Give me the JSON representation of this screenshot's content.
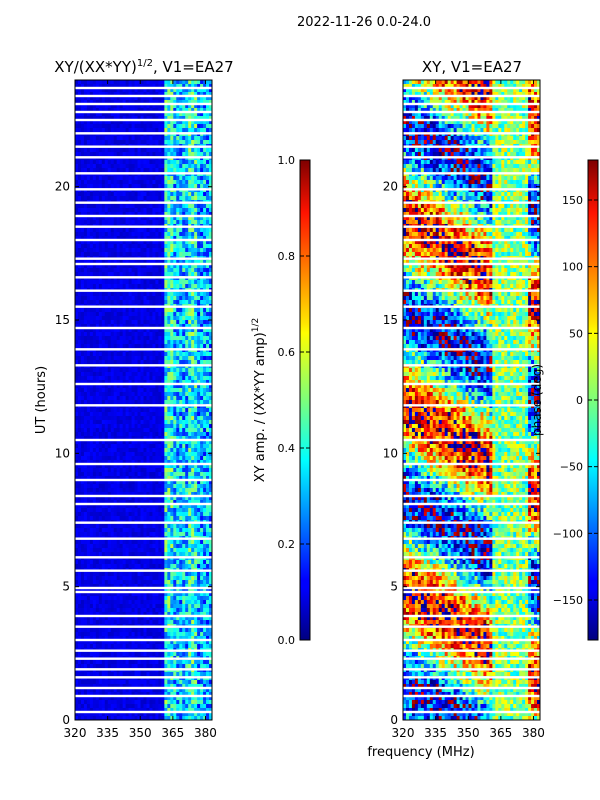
{
  "suptitle": "2022-11-26 0.0-24.0",
  "xlabel": "frequency (MHz)",
  "chart_data": [
    {
      "type": "heatmap",
      "title_main": "XY/(XX*YY)",
      "title_sup": "1/2",
      "title_rest": ", V1=EA27",
      "xlabel": "",
      "ylabel": "UT (hours)",
      "x_ticks": [
        320,
        335,
        350,
        365,
        380
      ],
      "xlim": [
        320,
        383
      ],
      "y_ticks": [
        0,
        5,
        10,
        15,
        20
      ],
      "ylim": [
        0,
        24
      ],
      "colormap": "jet",
      "colorbar": {
        "label_main": "XY amp. / (XX*YY amp)",
        "label_sup": "1/2",
        "ticks": [
          "0.0",
          "0.2",
          "0.4",
          "0.6",
          "0.8",
          "1.0"
        ],
        "range": [
          0,
          1
        ]
      },
      "bands": [
        {
          "from": 320,
          "to": 361,
          "value": 0.1
        },
        {
          "from": 361,
          "to": 365,
          "value": 0.38
        },
        {
          "from": 365,
          "to": 372,
          "value": 0.3
        },
        {
          "from": 372,
          "to": 376,
          "value": 0.38
        },
        {
          "from": 376,
          "to": 383,
          "value": 0.28
        }
      ],
      "flagged_gaps_ut": [
        0.3,
        0.9,
        1.2,
        1.6,
        1.9,
        2.3,
        2.6,
        3.0,
        3.5,
        3.9,
        4.8,
        4.95,
        5.6,
        6.1,
        6.8,
        7.4,
        8.1,
        8.4,
        9.0,
        9.6,
        10.5,
        11.8,
        12.6,
        13.3,
        13.9,
        14.7,
        15.5,
        16.1,
        16.6,
        17.1,
        17.3,
        18.0,
        18.5,
        18.9,
        19.4,
        19.9,
        20.5,
        21.1,
        21.5,
        22.0,
        22.5,
        22.8,
        23.1,
        23.4,
        23.7
      ]
    },
    {
      "type": "heatmap",
      "title_main": "XY, V1=EA27",
      "xlabel": "",
      "ylabel": "",
      "x_ticks": [
        320,
        335,
        350,
        365,
        380
      ],
      "xlim": [
        320,
        383
      ],
      "y_ticks": [
        0,
        5,
        10,
        15,
        20
      ],
      "ylim": [
        0,
        24
      ],
      "colormap": "jet",
      "colorbar": {
        "label_main": "phase (deg)",
        "ticks": [
          "150",
          "100",
          "50",
          "0",
          "−50",
          "−100",
          "−150"
        ],
        "tick_values": [
          150,
          100,
          50,
          0,
          -50,
          -100,
          -150
        ],
        "range": [
          -180,
          180
        ]
      },
      "flagged_gaps_ut": [
        0.3,
        0.9,
        1.2,
        1.6,
        1.9,
        2.3,
        2.6,
        3.0,
        3.5,
        3.9,
        4.8,
        4.95,
        5.6,
        6.1,
        6.8,
        7.4,
        8.1,
        8.4,
        9.0,
        9.6,
        10.5,
        11.8,
        12.6,
        13.3,
        13.9,
        14.7,
        15.5,
        16.1,
        16.6,
        17.1,
        17.3,
        18.0,
        18.5,
        18.9,
        19.4,
        19.9,
        20.5,
        21.1,
        21.5,
        22.0,
        22.5,
        22.8,
        23.1,
        23.4,
        23.7
      ]
    }
  ]
}
